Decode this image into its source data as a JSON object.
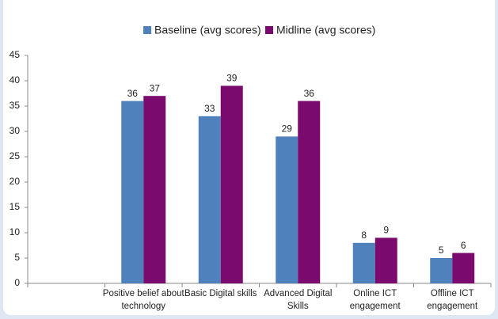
{
  "chart_data": {
    "type": "bar",
    "categories": [
      null,
      "Positive belief about technology",
      "Basic Digital skills",
      "Advanced Digital Skills",
      "Online ICT engagement",
      "Offline ICT engagement"
    ],
    "series": [
      {
        "name": "Baseline (avg scores)",
        "color": "#4f81bd",
        "values": [
          null,
          36,
          33,
          29,
          8,
          5
        ]
      },
      {
        "name": "Midline (avg scores)",
        "color": "#7a0a6e",
        "values": [
          null,
          37,
          39,
          36,
          9,
          6
        ]
      }
    ],
    "ylim": [
      0,
      45
    ],
    "yticks": [
      0,
      5,
      10,
      15,
      20,
      25,
      30,
      35,
      40,
      45
    ],
    "grid": false,
    "legend": "top"
  }
}
